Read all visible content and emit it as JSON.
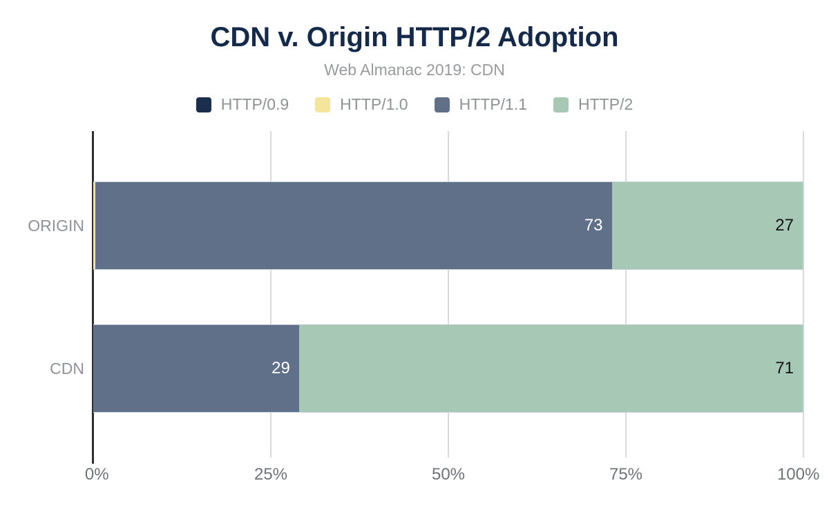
{
  "chart_data": {
    "type": "bar",
    "orientation": "horizontal",
    "stacked": true,
    "title": "CDN v. Origin HTTP/2 Adoption",
    "subtitle": "Web Almanac 2019: CDN",
    "legend_position": "top",
    "grid": true,
    "xlim": [
      0,
      100
    ],
    "x_ticks": [
      {
        "label": "0%",
        "value": 0
      },
      {
        "label": "25%",
        "value": 25
      },
      {
        "label": "50%",
        "value": 50
      },
      {
        "label": "75%",
        "value": 75
      },
      {
        "label": "100%",
        "value": 100
      }
    ],
    "categories": [
      "ORIGIN",
      "CDN"
    ],
    "series": [
      {
        "name": "HTTP/0.9",
        "color": "#1c2e4e",
        "values": [
          0,
          0
        ],
        "labels": [
          "",
          ""
        ],
        "label_color": "#ffffff"
      },
      {
        "name": "HTTP/1.0",
        "color": "#f5e49b",
        "values": [
          0.3,
          0
        ],
        "labels": [
          "",
          ""
        ],
        "label_color": "#111111"
      },
      {
        "name": "HTTP/1.1",
        "color": "#607089",
        "values": [
          73,
          29
        ],
        "labels": [
          "73",
          "29"
        ],
        "label_color": "#ffffff"
      },
      {
        "name": "HTTP/2",
        "color": "#a6c8b5",
        "values": [
          27,
          71
        ],
        "labels": [
          "27",
          "71"
        ],
        "label_color": "#111111"
      }
    ]
  }
}
